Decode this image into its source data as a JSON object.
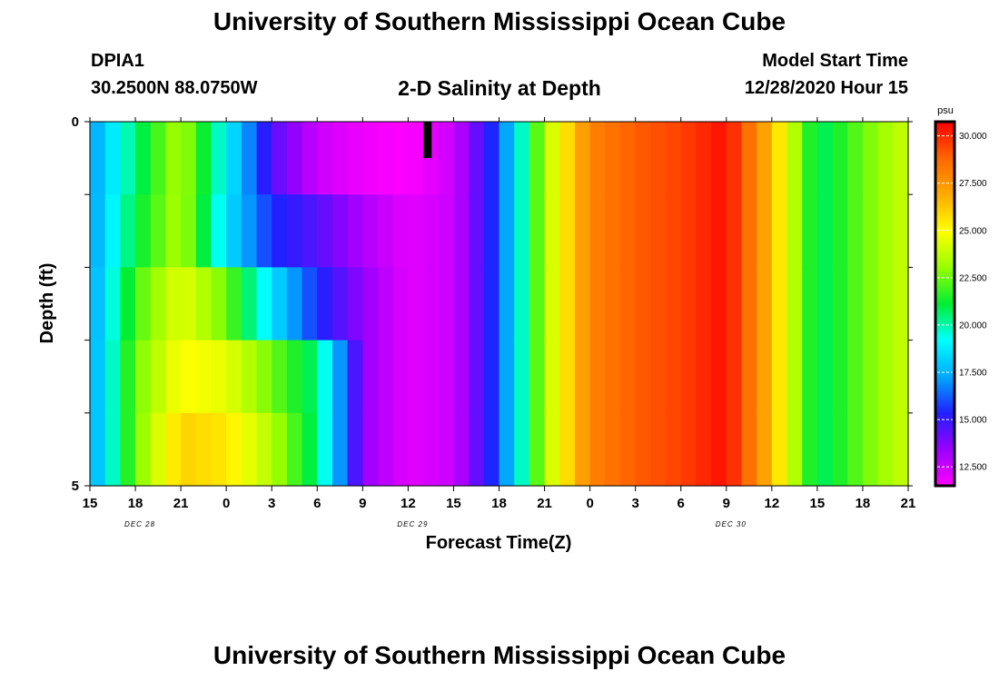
{
  "page": {
    "title": "University of Southern Mississippi Ocean Cube",
    "footer_title": "University of Southern Mississippi Ocean Cube",
    "station_id": "DPIA1",
    "coordinates": "30.2500N 88.0750W",
    "model_start_label": "Model Start Time",
    "model_start_value": "12/28/2020 Hour 15"
  },
  "colors": {
    "background": "#ffffff",
    "axis": "#000000",
    "missing_cell": "#000000"
  },
  "chart_data": {
    "type": "heatmap",
    "title": "2-D Salinity at Depth",
    "xlabel": "Forecast Time(Z)",
    "ylabel": "Depth (ft)",
    "unit": "psu",
    "x_tick_labels": [
      "15",
      "18",
      "21",
      "0",
      "3",
      "6",
      "9",
      "12",
      "15",
      "18",
      "21",
      "0",
      "3",
      "6",
      "9",
      "12",
      "15",
      "18",
      "21"
    ],
    "date_labels": [
      {
        "label": "DEC 28",
        "at_tick": 1
      },
      {
        "label": "DEC 29",
        "at_tick": 7
      },
      {
        "label": "DEC 30",
        "at_tick": 14
      }
    ],
    "y_tick_labels": [
      "0",
      "5"
    ],
    "ylim": [
      0,
      5
    ],
    "hours": 54,
    "depth_layers": 5,
    "colorbar": {
      "min": 11.5,
      "max": 30.75,
      "tick_values": [
        12.5,
        15.0,
        17.5,
        20.0,
        22.5,
        25.0,
        27.5,
        30.0
      ],
      "tick_labels": [
        "12.500",
        "15.000",
        "17.500",
        "20.000",
        "22.500",
        "25.000",
        "27.500",
        "30.000"
      ],
      "colors": [
        "#ff00ff",
        "#9900ff",
        "#2020ff",
        "#00aaff",
        "#00ffff",
        "#00ee33",
        "#99ff00",
        "#ffff00",
        "#ffaa00",
        "#ff6600",
        "#ff0000"
      ]
    },
    "profile_hours": [
      0,
      3,
      6,
      9,
      12,
      15,
      18,
      21,
      24,
      27,
      30,
      33,
      36,
      39,
      42,
      45,
      48,
      51,
      54
    ],
    "salinity_profiles": [
      [
        17.0,
        17.0,
        17.0,
        17.0,
        17.0
      ],
      [
        20.5,
        21.0,
        22.0,
        22.5,
        22.5
      ],
      [
        23.5,
        23.5,
        24.5,
        25.0,
        26.0
      ],
      [
        19.0,
        18.5,
        22.5,
        24.5,
        25.5
      ],
      [
        14.5,
        15.5,
        18.5,
        22.5,
        23.5
      ],
      [
        12.5,
        14.5,
        15.5,
        20.5,
        20.5
      ],
      [
        11.8,
        13.0,
        13.5,
        13.5,
        13.5
      ],
      [
        11.5,
        12.0,
        12.0,
        12.0,
        12.0
      ],
      [
        12.5,
        12.5,
        12.5,
        12.5,
        12.5
      ],
      [
        16.0,
        16.0,
        16.0,
        16.0,
        16.0
      ],
      [
        23.5,
        23.5,
        23.5,
        23.5,
        23.5
      ],
      [
        28.0,
        28.0,
        28.0,
        28.0,
        28.0
      ],
      [
        29.0,
        29.0,
        29.0,
        29.0,
        29.0
      ],
      [
        29.5,
        29.5,
        29.5,
        29.5,
        29.5
      ],
      [
        30.5,
        30.5,
        30.5,
        30.5,
        30.5
      ],
      [
        26.5,
        26.5,
        26.5,
        26.5,
        26.5
      ],
      [
        20.5,
        20.5,
        20.5,
        20.5,
        20.5
      ],
      [
        22.5,
        22.5,
        22.5,
        22.5,
        22.5
      ],
      [
        24.0,
        24.0,
        24.0,
        24.0,
        24.0
      ]
    ],
    "missing_cells": [
      {
        "hour": 22,
        "layer": 0
      }
    ]
  }
}
